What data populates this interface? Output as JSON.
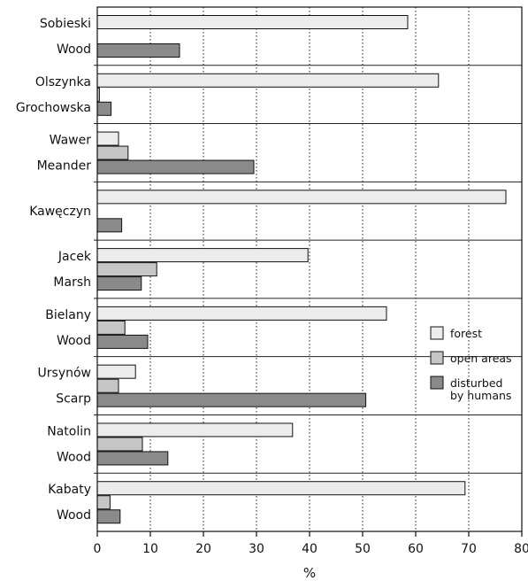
{
  "chart_data": {
    "type": "bar",
    "orientation": "horizontal",
    "categories": [
      [
        "Sobieski",
        "Wood"
      ],
      [
        "Olszynka",
        "Grochowska"
      ],
      [
        "Wawer",
        "Meander"
      ],
      [
        "Kawęczyn"
      ],
      [
        "Jacek",
        "Marsh"
      ],
      [
        "Bielany",
        "Wood"
      ],
      [
        "Ursynów",
        "Scarp"
      ],
      [
        "Natolin",
        "Wood"
      ],
      [
        "Kabaty",
        "Wood"
      ]
    ],
    "series": [
      {
        "name": "forest",
        "color": "#ececec",
        "values": [
          58.5,
          64.3,
          4.0,
          77.0,
          39.7,
          54.5,
          7.2,
          36.8,
          69.3
        ]
      },
      {
        "name": "open areas",
        "color": "#c6c6c6",
        "values": [
          0,
          0.4,
          5.8,
          0,
          11.2,
          5.2,
          4.0,
          8.5,
          2.4
        ]
      },
      {
        "name": "disturbed by humans",
        "color": "#8a8a8a",
        "values": [
          15.5,
          2.6,
          29.5,
          4.6,
          8.3,
          9.5,
          50.6,
          13.3,
          4.3
        ]
      }
    ],
    "legend_entries": [
      [
        "forest"
      ],
      [
        "open areas"
      ],
      [
        "disturbed",
        "by humans"
      ]
    ],
    "xlabel": "%",
    "xlim": [
      0,
      80
    ],
    "xticks": [
      0,
      10,
      20,
      30,
      40,
      50,
      60,
      70,
      80
    ],
    "grid": "vertical dotted",
    "legend_position": "right"
  }
}
